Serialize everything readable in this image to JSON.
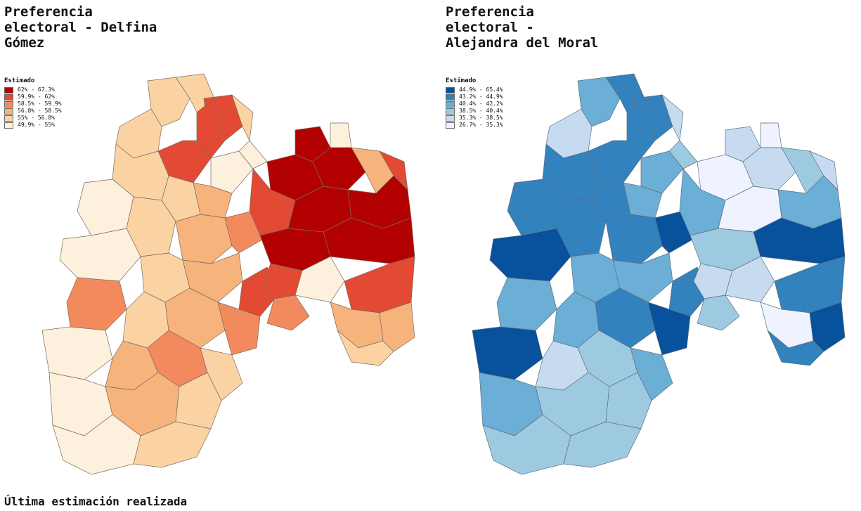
{
  "maps": [
    {
      "title": "Preferencia\nelectoral - Delfina\nGómez",
      "legend_title": "Estimado",
      "legend": [
        {
          "label": "62% - 67.3%",
          "color": "#b30000"
        },
        {
          "label": "59.9% - 62%",
          "color": "#e34a33"
        },
        {
          "label": "58.5% - 59.9%",
          "color": "#f28a5e"
        },
        {
          "label": "56.8% - 58.5%",
          "color": "#f7b37c"
        },
        {
          "label": "55% - 56.8%",
          "color": "#fbd3a3"
        },
        {
          "label": "49.9% - 55%",
          "color": "#fdf0dd"
        }
      ]
    },
    {
      "title": "Preferencia\nelectoral -\nAlejandra del Moral",
      "legend_title": "Estimado",
      "legend": [
        {
          "label": "44.9% - 65.4%",
          "color": "#08519c"
        },
        {
          "label": "43.2% - 44.9%",
          "color": "#3182bd"
        },
        {
          "label": "40.4% - 42.2%",
          "color": "#6baed6"
        },
        {
          "label": "38.5% - 40.4%",
          "color": "#9ecae1"
        },
        {
          "label": "35.3% - 38.5%",
          "color": "#c6dbef"
        },
        {
          "label": "26.7% - 35.3%",
          "color": "#eff3ff"
        }
      ]
    }
  ],
  "footer": "Última estimación realizada"
}
